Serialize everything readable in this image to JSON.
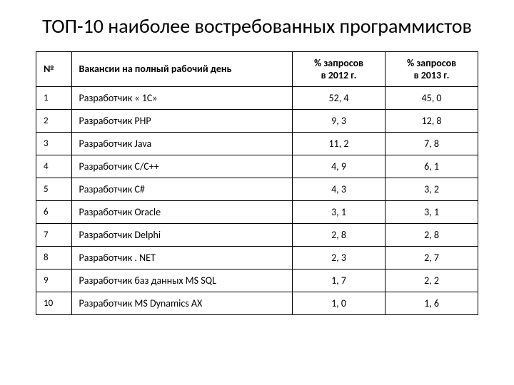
{
  "title": "ТОП-10 наиболее востребованных программистов",
  "table": {
    "columns": [
      {
        "label": "№",
        "align": "left",
        "width": "8%"
      },
      {
        "label": "Вакансии на полный рабочий день",
        "align": "left",
        "width": "50%"
      },
      {
        "label_line1": "% запросов",
        "label_line2": "в 2012 г.",
        "align": "center",
        "width": "21%"
      },
      {
        "label_line1": "% запросов",
        "label_line2": "в 2013 г.",
        "align": "center",
        "width": "21%"
      }
    ],
    "rows": [
      {
        "num": "1",
        "vacancy": "Разработчик « 1С»",
        "p2012": "52, 4",
        "p2013": "45, 0"
      },
      {
        "num": "2",
        "vacancy": "Разработчик PHP",
        "p2012": "9, 3",
        "p2013": "12, 8"
      },
      {
        "num": "3",
        "vacancy": "Разработчик Java",
        "p2012": "11, 2",
        "p2013": "7, 8"
      },
      {
        "num": "4",
        "vacancy": "Разработчик C/C++",
        "p2012": "4, 9",
        "p2013": "6, 1"
      },
      {
        "num": "5",
        "vacancy": "Разработчик C#",
        "p2012": "4, 3",
        "p2013": "3, 2"
      },
      {
        "num": "6",
        "vacancy": "Разработчик Oracle",
        "p2012": "3, 1",
        "p2013": "3, 1"
      },
      {
        "num": "7",
        "vacancy": "Разработчик Delphi",
        "p2012": "2, 8",
        "p2013": "2, 8"
      },
      {
        "num": "8",
        "vacancy": "Разработчик . NET",
        "p2012": "2, 3",
        "p2013": "2, 7"
      },
      {
        "num": "9",
        "vacancy": "Разработчик баз данных MS SQL",
        "p2012": "1, 7",
        "p2013": "2, 2"
      },
      {
        "num": "10",
        "vacancy": "Разработчик MS Dynamics AX",
        "p2012": "1, 0",
        "p2013": "1, 6"
      }
    ],
    "border_color": "#000000",
    "background_color": "#ffffff",
    "header_fontsize": 14,
    "cell_fontsize": 14,
    "header_fontweight": "bold"
  },
  "title_fontsize": 28,
  "title_color": "#000000"
}
